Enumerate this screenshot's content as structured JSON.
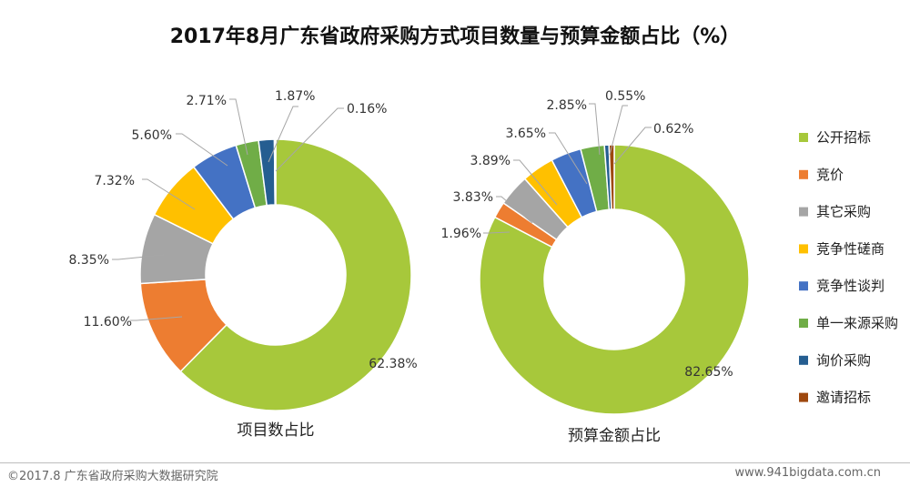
{
  "footer": {
    "copyright": "©2017.8 广东省政府采购大数据研究院",
    "website": "www.941bigdata.com.cn"
  },
  "chart_data": {
    "type": "donut",
    "title": "2017年8月广东省政府采购方式项目数量与预算金额占比（%）",
    "legend_position": "right",
    "categories": [
      "公开招标",
      "竞价",
      "其它采购",
      "竞争性磋商",
      "竞争性谈判",
      "单一来源采购",
      "询价采购",
      "邀请招标"
    ],
    "colors": [
      "#a7c83b",
      "#ed7d31",
      "#a5a5a5",
      "#ffc000",
      "#4472c4",
      "#70ad47",
      "#255e91",
      "#9e480e"
    ],
    "series": [
      {
        "name": "项目数占比",
        "values": [
          62.38,
          11.6,
          8.35,
          7.32,
          5.6,
          2.71,
          1.87,
          0.16
        ],
        "labels": [
          "62.38%",
          "11.60%",
          "8.35%",
          "7.32%",
          "5.60%",
          "2.71%",
          "1.87%",
          "0.16%"
        ]
      },
      {
        "name": "预算金额占比",
        "values": [
          82.65,
          1.96,
          3.83,
          3.89,
          3.65,
          2.85,
          0.55,
          0.62
        ],
        "labels": [
          "82.65%",
          "1.96%",
          "3.83%",
          "3.89%",
          "3.65%",
          "2.85%",
          "0.55%",
          "0.62%"
        ]
      }
    ]
  }
}
